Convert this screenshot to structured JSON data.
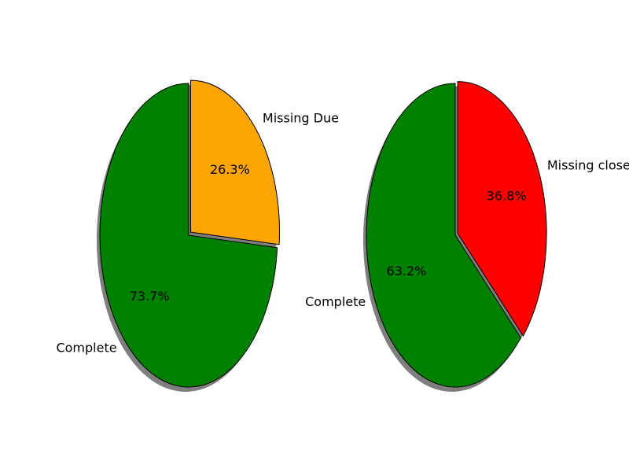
{
  "chart_data": [
    {
      "type": "pie",
      "labels": [
        "Missing Due",
        "Complete"
      ],
      "values": [
        26.3,
        73.7
      ],
      "value_labels": [
        "26.3%",
        "73.7%"
      ],
      "colors": [
        "#ffa500",
        "#008000"
      ],
      "explode": [
        1,
        0
      ],
      "shadow": true
    },
    {
      "type": "pie",
      "labels": [
        "Missing close",
        "Complete"
      ],
      "values": [
        36.8,
        63.2
      ],
      "value_labels": [
        "36.8%",
        "63.2%"
      ],
      "colors": [
        "#ff0000",
        "#008000"
      ],
      "explode": [
        1,
        0
      ],
      "shadow": true
    }
  ]
}
